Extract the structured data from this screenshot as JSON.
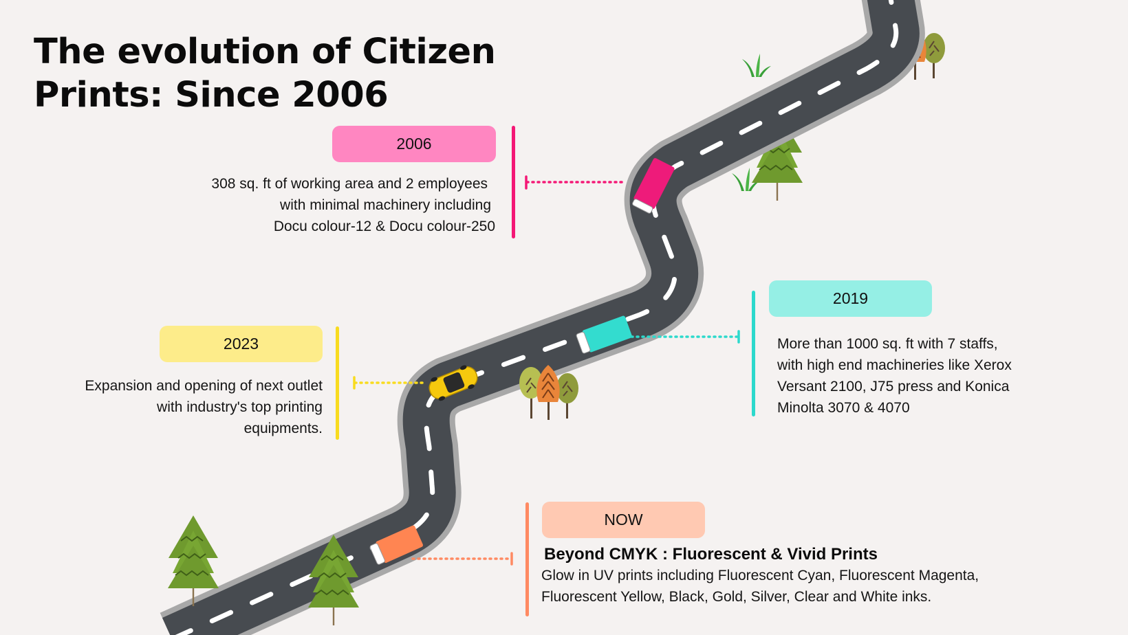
{
  "title": {
    "line1": "The evolution of Citizen",
    "line2": "Prints: Since 2006"
  },
  "milestones": [
    {
      "year": "2006",
      "color": "#ff86c1",
      "accent": "#f41876",
      "lines": [
        "308 sq. ft of working area and 2 employees",
        "with minimal machinery including",
        "Docu colour-12 & Docu colour-250"
      ]
    },
    {
      "year": "2019",
      "color": "#95efe5",
      "accent": "#2cd9cc",
      "lines": [
        "More than 1000 sq. ft with 7 staffs,",
        "with high end machineries like Xerox",
        "Versant 2100, J75 press and Konica",
        "Minolta 3070 & 4070"
      ]
    },
    {
      "year": "2023",
      "color": "#fdec8a",
      "accent": "#f8db1f",
      "lines": [
        "Expansion and opening of next outlet",
        "with industry's top printing",
        "equipments."
      ]
    },
    {
      "year": "NOW",
      "color": "#ffc9b2",
      "accent": "#ff8a62",
      "heading": "Beyond CMYK : Fluorescent & Vivid Prints",
      "lines": [
        "Glow in UV prints including Fluorescent Cyan, Fluorescent Magenta,",
        "Fluorescent Yellow, Black, Gold, Silver, Clear and White inks."
      ]
    }
  ],
  "road": {
    "asphalt": "#474b50",
    "edge": "#a8a8a8",
    "dash": "#ffffff"
  },
  "vehicles": [
    {
      "icon": "pink-truck-icon",
      "color": "#ee1b7a"
    },
    {
      "icon": "cyan-truck-icon",
      "color": "#33dccf"
    },
    {
      "icon": "yellow-car-icon",
      "color": "#f6c90e"
    },
    {
      "icon": "orange-truck-icon",
      "color": "#ff8552"
    }
  ],
  "scenery": [
    "pine-tree-icon",
    "autumn-tree-cluster-icon",
    "grass-tuft-icon"
  ]
}
